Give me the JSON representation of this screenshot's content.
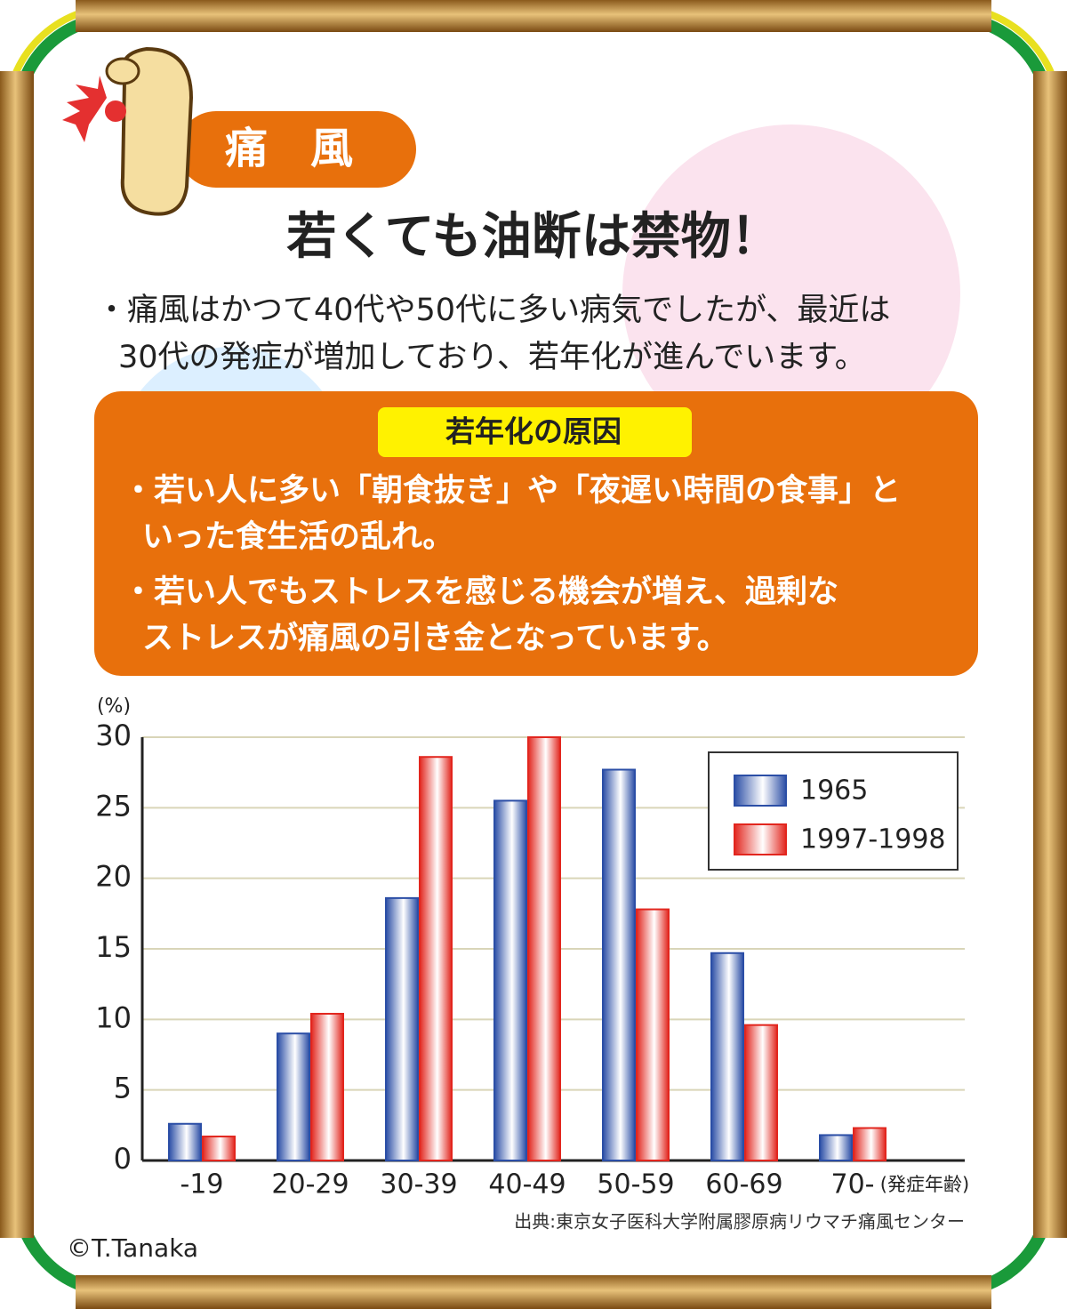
{
  "header": {
    "tag": "痛　風",
    "headline": "若くても油断は禁物！",
    "intro": [
      "・痛風はかつて40代や50代に多い病気でしたが、最近は",
      "30代の発症が増加しており、若年化が進んでいます。"
    ]
  },
  "causes": {
    "title": "若年化の原因",
    "items": [
      [
        "・若い人に多い「朝食抜き」や「夜遅い時間の食事」と",
        "いった食生活の乱れ。"
      ],
      [
        "・若い人でもストレスを感じる機会が増え、過剰な",
        "ストレスが痛風の引き金となっています。"
      ]
    ]
  },
  "chart_data": {
    "type": "bar",
    "y_label": "(%)",
    "x_label": "(発症年齢)",
    "categories": [
      "-19",
      "20-29",
      "30-39",
      "40-49",
      "50-59",
      "60-69",
      "70-"
    ],
    "series": [
      {
        "name": "1965",
        "color": "#2b4ea6",
        "values": [
          2.6,
          9.0,
          18.6,
          25.5,
          27.7,
          14.7,
          1.8
        ]
      },
      {
        "name": "1997-1998",
        "color": "#e2261e",
        "values": [
          1.7,
          10.4,
          28.6,
          30.0,
          17.8,
          9.6,
          2.3
        ]
      }
    ],
    "ylim": [
      0,
      30
    ],
    "yticks": [
      0,
      5,
      10,
      15,
      20,
      25,
      30
    ],
    "grid": true,
    "legend": "upper right",
    "source": "出典:東京女子医科大学附属膠原病リウマチ痛風センター"
  },
  "credit": "©T.Tanaka"
}
